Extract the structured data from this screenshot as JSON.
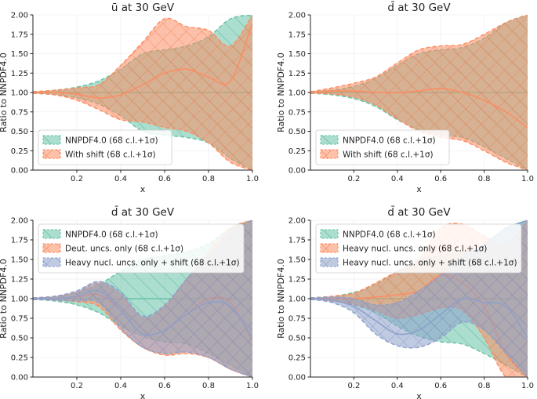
{
  "chart_data": [
    {
      "type": "line",
      "title": "ū at 30 GeV",
      "xlabel": "x",
      "ylabel": "Ratio to NNPDF4.0",
      "xlim": [
        0.0,
        1.0
      ],
      "ylim": [
        0.0,
        2.0
      ],
      "xticks": [
        "0.2",
        "0.4",
        "0.6",
        "0.8",
        "1.0"
      ],
      "yticks": [
        "0.00",
        "0.25",
        "0.50",
        "0.75",
        "1.00",
        "1.25",
        "1.50",
        "1.75",
        "2.00"
      ],
      "legend_position": "lower-left",
      "series": [
        {
          "name": "NNPDF4.0 (68 c.l.+1σ)",
          "color": "#66c2a5",
          "hatch": "diagonal",
          "x": [
            0.001,
            0.1,
            0.2,
            0.3,
            0.4,
            0.5,
            0.6,
            0.7,
            0.8,
            0.9,
            1.0
          ],
          "central": [
            1,
            1,
            1,
            1,
            1,
            1,
            1,
            1,
            1,
            1,
            1
          ],
          "lower": [
            0.99,
            0.97,
            0.93,
            0.85,
            0.7,
            0.5,
            0.45,
            0.42,
            0.35,
            0.15,
            0.0
          ],
          "upper": [
            1.01,
            1.03,
            1.07,
            1.15,
            1.3,
            1.5,
            1.55,
            1.6,
            1.72,
            1.95,
            2.0
          ]
        },
        {
          "name": "With shift (68 c.l.+1σ)",
          "color": "#fc8d62",
          "hatch": "crosshatch",
          "x": [
            0.001,
            0.1,
            0.2,
            0.3,
            0.4,
            0.5,
            0.6,
            0.7,
            0.8,
            0.9,
            1.0
          ],
          "central": [
            1,
            1.0,
            0.98,
            0.93,
            0.97,
            1.1,
            1.25,
            1.3,
            1.2,
            1.15,
            1.9
          ],
          "lower": [
            0.99,
            0.97,
            0.9,
            0.78,
            0.65,
            0.62,
            0.55,
            0.5,
            0.35,
            0.1,
            0.0
          ],
          "upper": [
            1.01,
            1.03,
            1.06,
            1.1,
            1.35,
            1.65,
            1.95,
            1.85,
            1.8,
            1.6,
            2.0
          ]
        }
      ]
    },
    {
      "type": "line",
      "title": "d̄ at 30 GeV",
      "xlabel": "x",
      "ylabel": "Ratio to NNPDF4.0",
      "xlim": [
        0.0,
        1.0
      ],
      "ylim": [
        0.0,
        2.0
      ],
      "xticks": [
        "0.2",
        "0.4",
        "0.6",
        "0.8",
        "1.0"
      ],
      "yticks": [
        "0.00",
        "0.25",
        "0.50",
        "0.75",
        "1.00",
        "1.25",
        "1.50",
        "1.75",
        "2.00"
      ],
      "legend_position": "lower-left",
      "series": [
        {
          "name": "NNPDF4.0 (68 c.l.+1σ)",
          "color": "#66c2a5",
          "hatch": "diagonal",
          "x": [
            0.001,
            0.1,
            0.2,
            0.3,
            0.4,
            0.5,
            0.6,
            0.7,
            0.8,
            0.9,
            1.0
          ],
          "central": [
            1,
            1,
            1,
            1,
            1,
            1,
            1,
            1,
            1,
            1,
            1
          ],
          "lower": [
            0.99,
            0.97,
            0.92,
            0.82,
            0.65,
            0.52,
            0.45,
            0.42,
            0.3,
            0.15,
            0.0
          ],
          "upper": [
            1.01,
            1.03,
            1.08,
            1.18,
            1.35,
            1.5,
            1.55,
            1.58,
            1.7,
            1.9,
            2.0
          ]
        },
        {
          "name": "With shift (68 c.l.+1σ)",
          "color": "#fc8d62",
          "hatch": "crosshatch",
          "x": [
            0.001,
            0.1,
            0.2,
            0.3,
            0.4,
            0.5,
            0.6,
            0.7,
            0.8,
            0.9,
            1.0
          ],
          "central": [
            1,
            1.02,
            1.02,
            1.0,
            1.0,
            1.02,
            1.05,
            1.0,
            0.9,
            0.75,
            0.55
          ],
          "lower": [
            0.99,
            0.98,
            0.94,
            0.84,
            0.66,
            0.5,
            0.42,
            0.38,
            0.25,
            0.1,
            0.0
          ],
          "upper": [
            1.01,
            1.06,
            1.12,
            1.2,
            1.38,
            1.55,
            1.6,
            1.62,
            1.75,
            1.9,
            2.0
          ]
        }
      ]
    },
    {
      "type": "line",
      "title": "d̄ at 30 GeV",
      "xlabel": "x",
      "ylabel": "Ratio to NNPDF4.0",
      "xlim": [
        0.0,
        1.0
      ],
      "ylim": [
        0.0,
        2.0
      ],
      "xticks": [
        "0.2",
        "0.4",
        "0.6",
        "0.8",
        "1.0"
      ],
      "yticks": [
        "0.00",
        "0.25",
        "0.50",
        "0.75",
        "1.00",
        "1.25",
        "1.50",
        "1.75",
        "2.00"
      ],
      "legend_position": "top-left",
      "series": [
        {
          "name": "NNPDF4.0 (68 c.l.+1σ)",
          "color": "#66c2a5",
          "hatch": "diagonal",
          "x": [
            0.001,
            0.1,
            0.2,
            0.3,
            0.4,
            0.5,
            0.6,
            0.7,
            0.8,
            0.9,
            1.0
          ],
          "central": [
            1,
            1,
            1,
            1,
            1,
            1,
            1,
            1,
            1,
            1,
            1
          ],
          "lower": [
            0.99,
            0.97,
            0.92,
            0.82,
            0.65,
            0.52,
            0.45,
            0.42,
            0.3,
            0.15,
            0.0
          ],
          "upper": [
            1.01,
            1.03,
            1.08,
            1.18,
            1.35,
            1.5,
            1.55,
            1.6,
            1.7,
            1.9,
            2.0
          ]
        },
        {
          "name": "Deut. uncs. only (68 c.l.+1σ)",
          "color": "#fc8d62",
          "hatch": "crosshatch",
          "x": [
            0.001,
            0.1,
            0.2,
            0.3,
            0.4,
            0.5,
            0.6,
            0.7,
            0.8,
            0.9,
            1.0
          ],
          "central": [
            1,
            1.0,
            1.02,
            1.05,
            0.85,
            0.55,
            0.6,
            0.8,
            1.0,
            0.95,
            0.45
          ],
          "lower": [
            0.99,
            0.98,
            0.96,
            0.9,
            0.6,
            0.38,
            0.28,
            0.3,
            0.25,
            0.1,
            0.0
          ],
          "upper": [
            1.01,
            1.03,
            1.08,
            1.2,
            1.05,
            0.75,
            0.9,
            1.25,
            1.6,
            1.9,
            2.0
          ]
        },
        {
          "name": "Heavy nucl. uncs. only + shift (68 c.l.+1σ)",
          "color": "#8da0cb",
          "hatch": "crosshatch",
          "x": [
            0.001,
            0.1,
            0.2,
            0.3,
            0.4,
            0.5,
            0.6,
            0.7,
            0.8,
            0.9,
            1.0
          ],
          "central": [
            1,
            1.0,
            1.03,
            1.1,
            0.85,
            0.55,
            0.6,
            0.8,
            0.95,
            0.9,
            0.5
          ],
          "lower": [
            0.99,
            0.98,
            0.97,
            0.95,
            0.62,
            0.38,
            0.3,
            0.32,
            0.25,
            0.1,
            0.0
          ],
          "upper": [
            1.01,
            1.03,
            1.1,
            1.22,
            1.08,
            0.78,
            0.92,
            1.25,
            1.55,
            1.85,
            2.0
          ]
        }
      ]
    },
    {
      "type": "line",
      "title": "d̄ at 30 GeV",
      "xlabel": "x",
      "ylabel": "Ratio to NNPDF4.0",
      "xlim": [
        0.0,
        1.0
      ],
      "ylim": [
        0.0,
        2.0
      ],
      "xticks": [
        "0.2",
        "0.4",
        "0.6",
        "0.8",
        "1.0"
      ],
      "yticks": [
        "0.00",
        "0.25",
        "0.50",
        "0.75",
        "1.00",
        "1.25",
        "1.50",
        "1.75",
        "2.00"
      ],
      "legend_position": "top-left",
      "series": [
        {
          "name": "NNPDF4.0 (68 c.l.+1σ)",
          "color": "#66c2a5",
          "hatch": "diagonal",
          "x": [
            0.001,
            0.1,
            0.2,
            0.3,
            0.4,
            0.5,
            0.6,
            0.7,
            0.8,
            0.9,
            1.0
          ],
          "central": [
            1,
            1,
            1,
            1,
            1,
            1,
            1,
            1,
            1,
            1,
            1
          ],
          "lower": [
            0.99,
            0.97,
            0.92,
            0.82,
            0.65,
            0.52,
            0.45,
            0.42,
            0.3,
            0.15,
            0.0
          ],
          "upper": [
            1.01,
            1.03,
            1.08,
            1.18,
            1.35,
            1.5,
            1.55,
            1.6,
            1.7,
            1.9,
            2.0
          ]
        },
        {
          "name": "Heavy nucl. uncs. only (68 c.l.+1σ)",
          "color": "#fc8d62",
          "hatch": "crosshatch",
          "x": [
            0.001,
            0.1,
            0.2,
            0.3,
            0.4,
            0.5,
            0.6,
            0.7,
            0.8,
            0.9,
            1.0
          ],
          "central": [
            1,
            1.0,
            1.0,
            1.02,
            1.05,
            1.1,
            1.3,
            1.2,
            0.9,
            0.3,
            0.0
          ],
          "lower": [
            0.99,
            0.97,
            0.93,
            0.85,
            0.75,
            0.8,
            0.88,
            0.85,
            0.5,
            0.0,
            0.0
          ],
          "upper": [
            1.01,
            1.03,
            1.07,
            1.2,
            1.35,
            1.5,
            1.9,
            1.95,
            1.8,
            1.7,
            2.0
          ]
        },
        {
          "name": "Heavy nucl. uncs. only + shift (68 c.l.+1σ)",
          "color": "#8da0cb",
          "hatch": "crosshatch",
          "x": [
            0.001,
            0.1,
            0.2,
            0.3,
            0.4,
            0.5,
            0.6,
            0.7,
            0.8,
            0.9,
            1.0
          ],
          "central": [
            1,
            0.98,
            0.9,
            0.72,
            0.55,
            0.6,
            0.8,
            1.0,
            0.95,
            0.9,
            0.5
          ],
          "lower": [
            0.99,
            0.95,
            0.82,
            0.55,
            0.4,
            0.38,
            0.5,
            0.7,
            0.6,
            0.3,
            0.0
          ],
          "upper": [
            1.01,
            1.02,
            1.0,
            0.92,
            0.95,
            1.1,
            1.3,
            1.55,
            1.7,
            1.9,
            2.0
          ]
        }
      ]
    }
  ]
}
